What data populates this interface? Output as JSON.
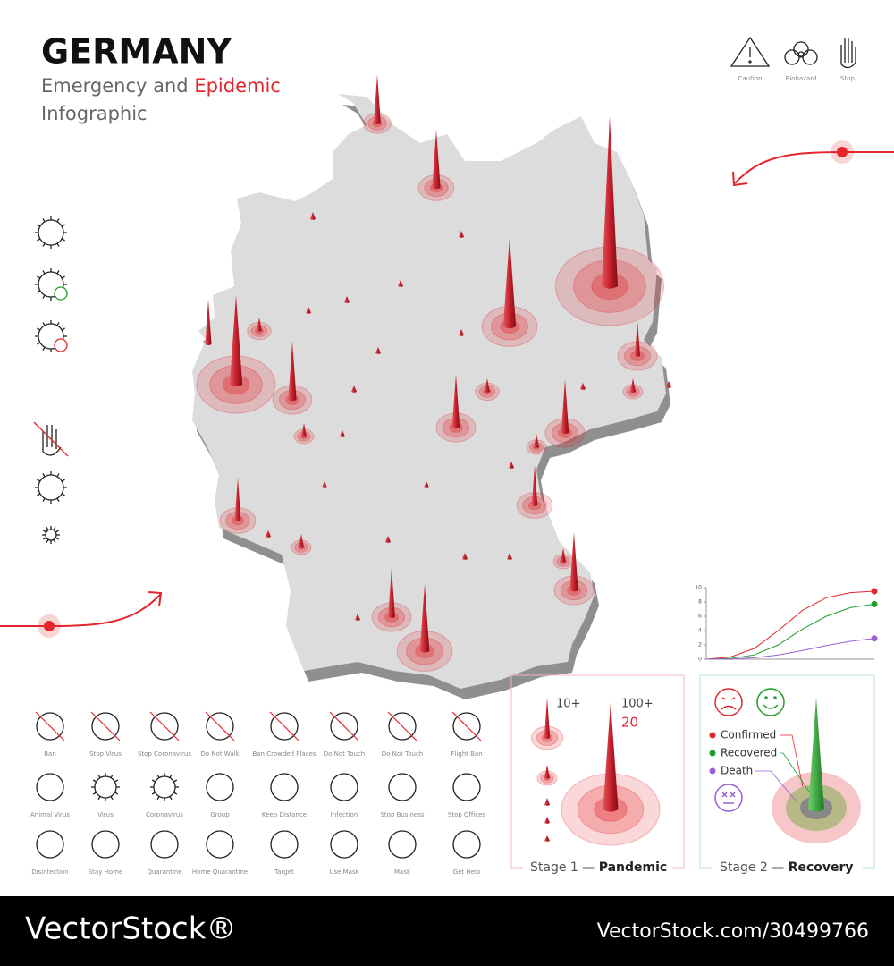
{
  "header": {
    "title": "GERMANY",
    "subtitle_1": "Emergency and",
    "subtitle_2": "Epidemic",
    "subtitle_3": "Infographic"
  },
  "top_icons": [
    "Caution",
    "Biohazard",
    "Stop"
  ],
  "icons": [
    [
      "Ban",
      "Stop Virus",
      "Stop Coronavirus",
      "Do Not Walk",
      "Ban Crowded Places",
      "Do Not Touch",
      "Do Not Touch",
      "Flight Ban"
    ],
    [
      "Animal Virus",
      "Virus",
      "Coronavirus",
      "Group",
      "Keep Distance",
      "Infection",
      "Stop Business",
      "Stop Offices"
    ],
    [
      "Disinfection",
      "Stay Home",
      "Quarantine",
      "Home Quarantine",
      "Target",
      "Use Mask",
      "Mask",
      "Get Help"
    ]
  ],
  "stage_1": {
    "label_1": "10+",
    "label_2": "100+",
    "label_3": "20",
    "title": "Stage 1 —",
    "title_bold": "Pandemic"
  },
  "stage_2": {
    "title": "Stage 2 —",
    "title_bold": "Recovery"
  },
  "chart_data": {
    "type": "line",
    "categories": [
      null,
      null,
      null,
      null,
      null,
      null,
      null,
      null
    ],
    "series": [
      {
        "name": "Confirmed",
        "color": "#e3262d",
        "values": [
          0,
          0.3,
          1.5,
          4,
          6.8,
          8.6,
          9.3,
          9.5
        ]
      },
      {
        "name": "Recovered",
        "color": "#1f9d2b",
        "values": [
          0,
          0.1,
          0.6,
          2,
          4.2,
          6,
          7.2,
          7.7
        ]
      },
      {
        "name": "Death",
        "color": "#9b5fd6",
        "values": [
          0,
          0,
          0.2,
          0.6,
          1.2,
          1.9,
          2.5,
          2.9
        ]
      }
    ],
    "ylim": [
      0,
      10
    ],
    "yticks": [
      0,
      2,
      4,
      6,
      8,
      10
    ]
  },
  "footer": {
    "brand": "VectorStock®",
    "url": "VectorStock.com/30499766"
  }
}
